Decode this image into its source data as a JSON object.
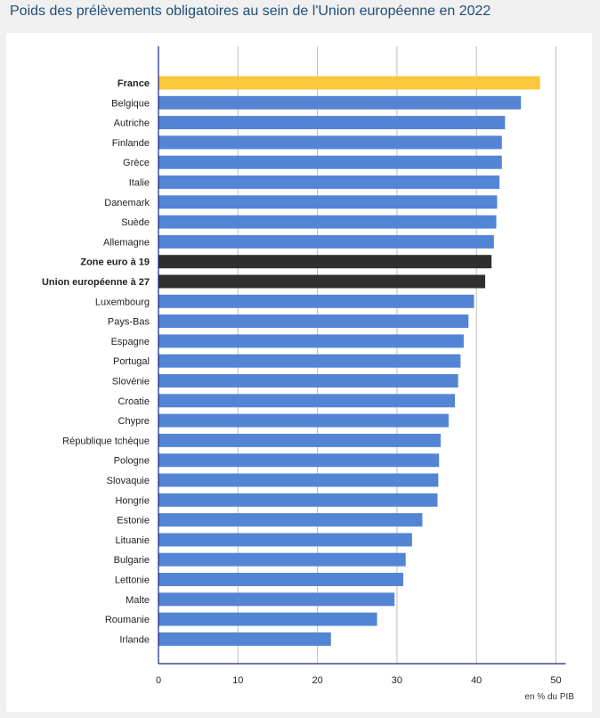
{
  "title": "Poids des prélèvements obligatoires au sein de l'Union européenne en 2022",
  "colors": {
    "highlight": "#f8c93c",
    "aggregate": "#2f2f2f",
    "default": "#5485d4",
    "grid": "#bdbdbd",
    "axis": "#1a237e"
  },
  "chart_data": {
    "type": "bar",
    "orientation": "horizontal",
    "title": "Poids des prélèvements obligatoires au sein de l'Union européenne en 2022",
    "xlabel": "en % du PIB",
    "ylabel": "",
    "xlim": [
      0,
      51
    ],
    "xticks": [
      0,
      10,
      20,
      30,
      40,
      50
    ],
    "grid": true,
    "categories": [
      "France",
      "Belgique",
      "Autriche",
      "Finlande",
      "Grèce",
      "Italie",
      "Danemark",
      "Suède",
      "Allemagne",
      "Zone euro à 19",
      "Union européenne à 27",
      "Luxembourg",
      "Pays-Bas",
      "Espagne",
      "Portugal",
      "Slovénie",
      "Croatie",
      "Chypre",
      "République tchèque",
      "Pologne",
      "Slovaquie",
      "Hongrie",
      "Estonie",
      "Lituanie",
      "Bulgarie",
      "Lettonie",
      "Malte",
      "Roumanie",
      "Irlande"
    ],
    "values": [
      48.0,
      45.6,
      43.6,
      43.2,
      43.2,
      42.9,
      42.6,
      42.5,
      42.2,
      41.9,
      41.1,
      39.7,
      39.0,
      38.4,
      38.0,
      37.7,
      37.3,
      36.5,
      35.5,
      35.3,
      35.2,
      35.1,
      33.2,
      31.9,
      31.1,
      30.8,
      29.7,
      27.5,
      21.7
    ],
    "bold_categories": [
      "France",
      "Zone euro à 19",
      "Union européenne à 27"
    ],
    "highlight_category": "France",
    "aggregate_categories": [
      "Zone euro à 19",
      "Union européenne à 27"
    ]
  }
}
